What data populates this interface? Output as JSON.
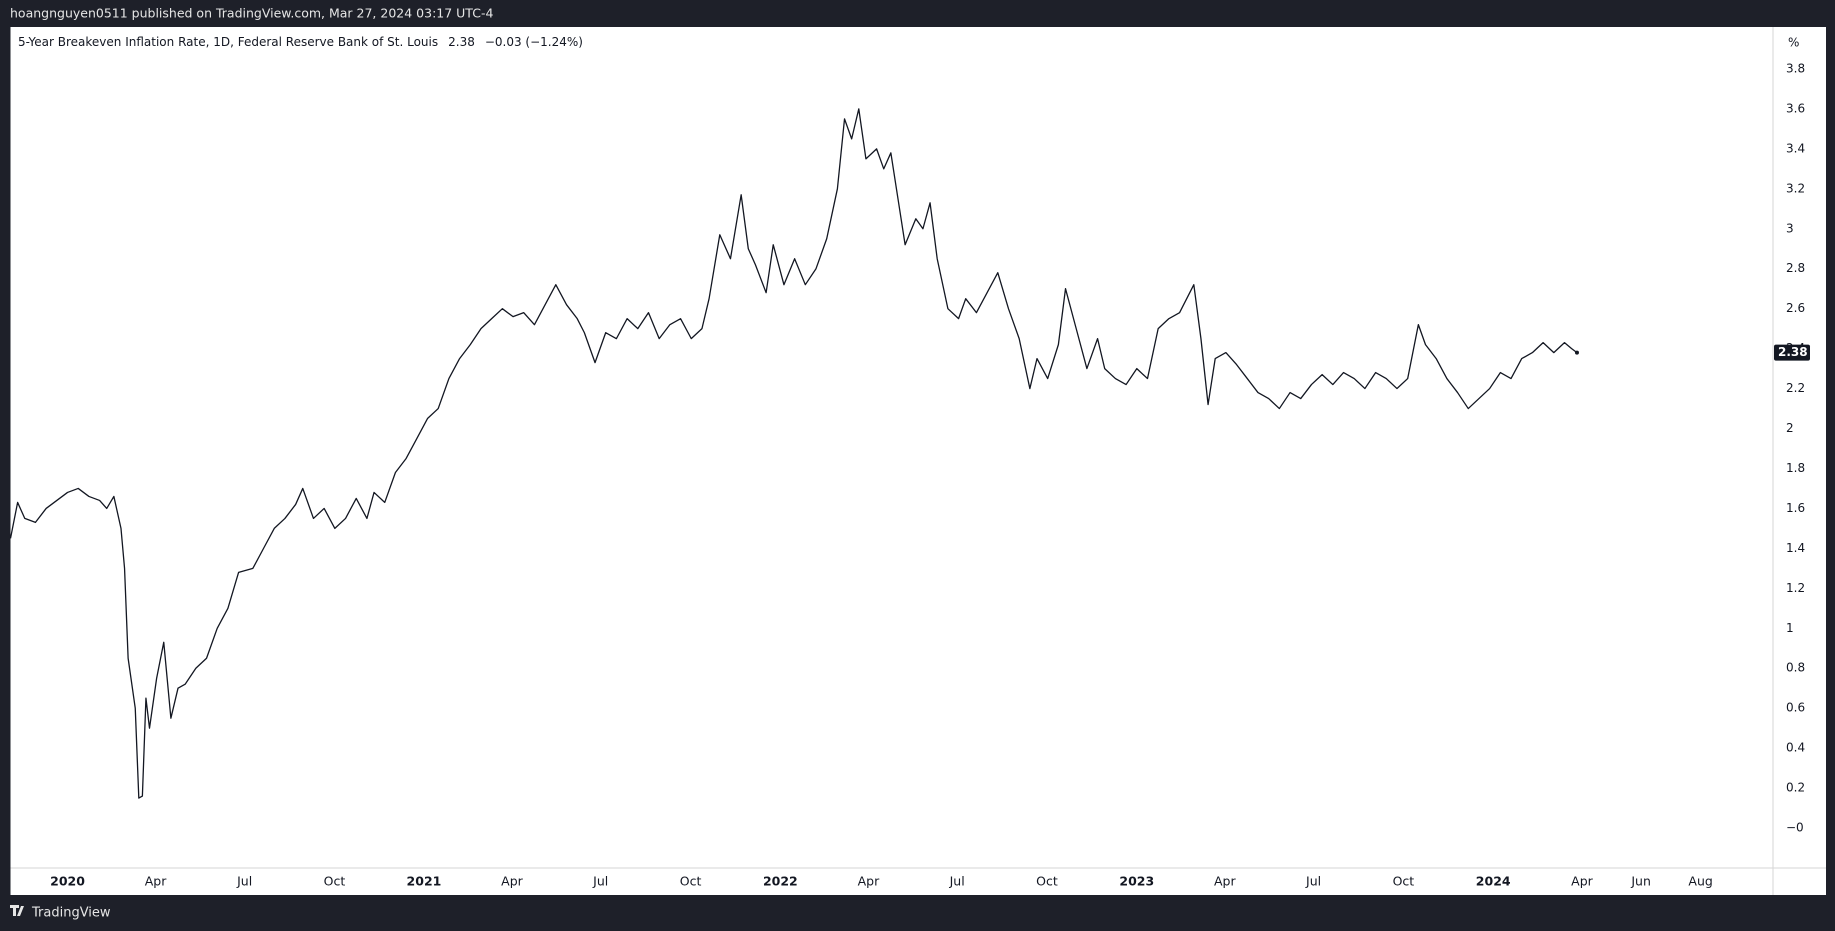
{
  "header": {
    "publisher": "hoangnguyen0511 published on TradingView.com, Mar 27, 2024 03:17 UTC-4"
  },
  "chart_data": {
    "type": "line",
    "title": "5-Year Breakeven Inflation Rate, 1D, Federal Reserve Bank of St. Louis",
    "last_value": 2.38,
    "change": "−0.03 (−1.24%)",
    "unit": "%",
    "x": [
      2019.84,
      2019.86,
      2019.88,
      2019.91,
      2019.94,
      2019.97,
      2020.0,
      2020.03,
      2020.06,
      2020.09,
      2020.11,
      2020.13,
      2020.15,
      2020.16,
      2020.17,
      2020.19,
      2020.2,
      2020.21,
      2020.22,
      2020.23,
      2020.25,
      2020.27,
      2020.29,
      2020.31,
      2020.33,
      2020.36,
      2020.39,
      2020.42,
      2020.45,
      2020.48,
      2020.52,
      2020.55,
      2020.58,
      2020.61,
      2020.64,
      2020.66,
      2020.69,
      2020.72,
      2020.75,
      2020.78,
      2020.81,
      2020.84,
      2020.86,
      2020.89,
      2020.92,
      2020.95,
      2020.98,
      2021.01,
      2021.04,
      2021.07,
      2021.1,
      2021.13,
      2021.16,
      2021.19,
      2021.22,
      2021.25,
      2021.28,
      2021.31,
      2021.34,
      2021.37,
      2021.4,
      2021.43,
      2021.45,
      2021.48,
      2021.51,
      2021.54,
      2021.57,
      2021.6,
      2021.63,
      2021.66,
      2021.69,
      2021.72,
      2021.75,
      2021.78,
      2021.8,
      2021.83,
      2021.86,
      2021.89,
      2021.91,
      2021.93,
      2021.96,
      2021.98,
      2022.01,
      2022.04,
      2022.07,
      2022.1,
      2022.13,
      2022.16,
      2022.18,
      2022.2,
      2022.22,
      2022.24,
      2022.27,
      2022.29,
      2022.31,
      2022.33,
      2022.35,
      2022.38,
      2022.4,
      2022.42,
      2022.44,
      2022.47,
      2022.5,
      2022.52,
      2022.55,
      2022.58,
      2022.61,
      2022.64,
      2022.67,
      2022.7,
      2022.72,
      2022.75,
      2022.78,
      2022.8,
      2022.83,
      2022.86,
      2022.89,
      2022.91,
      2022.94,
      2022.97,
      2023.0,
      2023.03,
      2023.06,
      2023.09,
      2023.12,
      2023.16,
      2023.18,
      2023.2,
      2023.22,
      2023.25,
      2023.28,
      2023.31,
      2023.34,
      2023.37,
      2023.4,
      2023.43,
      2023.46,
      2023.49,
      2023.52,
      2023.55,
      2023.58,
      2023.61,
      2023.64,
      2023.67,
      2023.7,
      2023.73,
      2023.76,
      2023.79,
      2023.81,
      2023.84,
      2023.87,
      2023.9,
      2023.93,
      2023.96,
      2023.99,
      2024.02,
      2024.05,
      2024.08,
      2024.11,
      2024.14,
      2024.17,
      2024.2,
      2024.22,
      2024.235
    ],
    "series": [
      {
        "color": "#131722",
        "values": [
          1.45,
          1.63,
          1.55,
          1.53,
          1.6,
          1.64,
          1.68,
          1.7,
          1.66,
          1.64,
          1.6,
          1.66,
          1.5,
          1.3,
          0.85,
          0.6,
          0.15,
          0.16,
          0.65,
          0.5,
          0.75,
          0.93,
          0.55,
          0.7,
          0.72,
          0.8,
          0.85,
          1.0,
          1.1,
          1.28,
          1.3,
          1.4,
          1.5,
          1.55,
          1.62,
          1.7,
          1.55,
          1.6,
          1.5,
          1.55,
          1.65,
          1.55,
          1.68,
          1.63,
          1.78,
          1.85,
          1.95,
          2.05,
          2.1,
          2.25,
          2.35,
          2.42,
          2.5,
          2.55,
          2.6,
          2.56,
          2.58,
          2.52,
          2.62,
          2.72,
          2.62,
          2.55,
          2.48,
          2.33,
          2.48,
          2.45,
          2.55,
          2.5,
          2.58,
          2.45,
          2.52,
          2.55,
          2.45,
          2.5,
          2.65,
          2.97,
          2.85,
          3.17,
          2.9,
          2.82,
          2.68,
          2.92,
          2.72,
          2.85,
          2.72,
          2.8,
          2.95,
          3.2,
          3.55,
          3.45,
          3.6,
          3.35,
          3.4,
          3.3,
          3.38,
          3.15,
          2.92,
          3.05,
          3.0,
          3.13,
          2.85,
          2.6,
          2.55,
          2.65,
          2.58,
          2.68,
          2.78,
          2.6,
          2.45,
          2.2,
          2.35,
          2.25,
          2.42,
          2.7,
          2.5,
          2.3,
          2.45,
          2.3,
          2.25,
          2.22,
          2.3,
          2.25,
          2.5,
          2.55,
          2.58,
          2.72,
          2.45,
          2.12,
          2.35,
          2.38,
          2.32,
          2.25,
          2.18,
          2.15,
          2.1,
          2.18,
          2.15,
          2.22,
          2.27,
          2.22,
          2.28,
          2.25,
          2.2,
          2.28,
          2.25,
          2.2,
          2.25,
          2.52,
          2.42,
          2.35,
          2.25,
          2.18,
          2.1,
          2.15,
          2.2,
          2.28,
          2.25,
          2.35,
          2.38,
          2.43,
          2.38,
          2.43,
          2.4,
          2.38
        ]
      }
    ],
    "xlim": [
      2019.84,
      2024.785
    ],
    "ylim": [
      -0.2,
      4.01
    ],
    "xticks": [
      2020,
      {
        "value": 2020.247,
        "label": "Apr"
      },
      {
        "value": 2020.497,
        "label": "Jul"
      },
      {
        "value": 2020.749,
        "label": "Oct"
      },
      2021,
      {
        "value": 2021.247,
        "label": "Apr"
      },
      {
        "value": 2021.496,
        "label": "Jul"
      },
      {
        "value": 2021.748,
        "label": "Oct"
      },
      2022,
      {
        "value": 2022.247,
        "label": "Apr"
      },
      {
        "value": 2022.496,
        "label": "Jul"
      },
      {
        "value": 2022.748,
        "label": "Oct"
      },
      2023,
      {
        "value": 2023.247,
        "label": "Apr"
      },
      {
        "value": 2023.496,
        "label": "Jul"
      },
      {
        "value": 2023.748,
        "label": "Oct"
      },
      2024,
      {
        "value": 2024.249,
        "label": "Apr"
      },
      {
        "value": 2024.415,
        "label": "Jun"
      },
      {
        "value": 2024.582,
        "label": "Aug"
      }
    ],
    "yticks": [
      {
        "value": 0,
        "label": "−0"
      },
      0.2,
      0.4,
      0.6,
      0.8,
      1,
      1.2,
      1.4,
      1.6,
      1.8,
      2,
      2.2,
      2.4,
      2.6,
      2.8,
      3,
      3.2,
      3.4,
      3.6,
      3.8
    ]
  },
  "footer": {
    "brand": "TradingView"
  }
}
